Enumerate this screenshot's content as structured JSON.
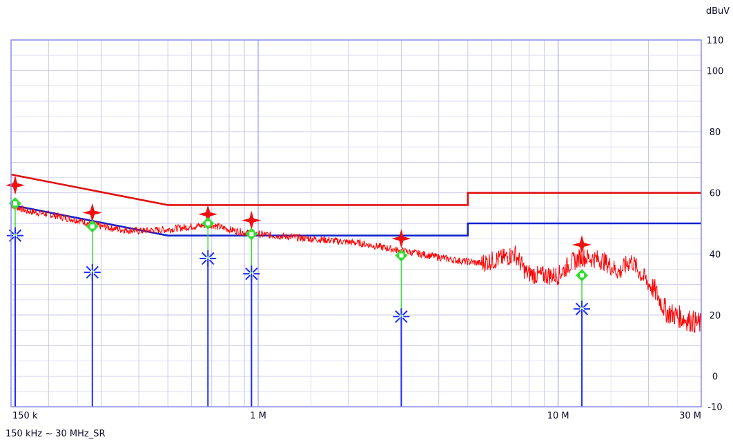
{
  "chart_data": {
    "type": "line",
    "x_scale": "log",
    "x_range_hz": [
      150000,
      30000000
    ],
    "y_range": [
      -10,
      110
    ],
    "y_unit_label": "dBuV",
    "y_ticks": [
      {
        "value": 110,
        "label": "110"
      },
      {
        "value": 100,
        "label": "100"
      },
      {
        "value": 80,
        "label": "80"
      },
      {
        "value": 60,
        "label": "60"
      },
      {
        "value": 40,
        "label": "40"
      },
      {
        "value": 20,
        "label": "20"
      },
      {
        "value": 0,
        "label": "0"
      },
      {
        "value": -10,
        "label": "-10"
      }
    ],
    "x_ticks": [
      {
        "value": 150000,
        "label": "150 k",
        "anchor": "start"
      },
      {
        "value": 1000000,
        "label": "1 M",
        "anchor": "middle"
      },
      {
        "value": 10000000,
        "label": "10 M",
        "anchor": "middle"
      },
      {
        "value": 30000000,
        "label": "30 M",
        "anchor": "end"
      }
    ],
    "range_label": "150 kHz ~ 30 MHz_SR",
    "grid": true,
    "colors": {
      "frame": "#8a8af0",
      "grid": "#c8c8e8",
      "minor_grid": "#e0e0f0",
      "trace": "#ff0000",
      "qp_limit": "#e01010",
      "avg_limit": "#1020d0",
      "qp_marker": "#ee1111",
      "avg_marker": "#1a2dff",
      "connector": "#33dd33"
    },
    "limit_lines": [
      {
        "color_key": "qp_limit",
        "points": [
          [
            150000,
            66
          ],
          [
            500000,
            56
          ],
          [
            5000000,
            56
          ],
          [
            5000000,
            60
          ],
          [
            30000000,
            60
          ]
        ]
      },
      {
        "color_key": "avg_limit",
        "points": [
          [
            150000,
            56
          ],
          [
            500000,
            46
          ],
          [
            5000000,
            46
          ],
          [
            5000000,
            50
          ],
          [
            30000000,
            50
          ]
        ]
      }
    ],
    "trace": [
      [
        150000,
        56
      ],
      [
        170000,
        54
      ],
      [
        200000,
        53
      ],
      [
        250000,
        51
      ],
      [
        300000,
        49
      ],
      [
        350000,
        48
      ],
      [
        400000,
        47.5
      ],
      [
        500000,
        48
      ],
      [
        600000,
        49
      ],
      [
        700000,
        49.5
      ],
      [
        800000,
        48
      ],
      [
        900000,
        47
      ],
      [
        1000000,
        46.5
      ],
      [
        1300000,
        45.5
      ],
      [
        1700000,
        44.5
      ],
      [
        2200000,
        43.5
      ],
      [
        3000000,
        41
      ],
      [
        3500000,
        40
      ],
      [
        4500000,
        38
      ],
      [
        5500000,
        37
      ],
      [
        6500000,
        38.5
      ],
      [
        7200000,
        40
      ],
      [
        7800000,
        34
      ],
      [
        8500000,
        33
      ],
      [
        10000000,
        33
      ],
      [
        11000000,
        37
      ],
      [
        12000000,
        39
      ],
      [
        14000000,
        38
      ],
      [
        16000000,
        34
      ],
      [
        17500000,
        38
      ],
      [
        19000000,
        33
      ],
      [
        21000000,
        28
      ],
      [
        23000000,
        21
      ],
      [
        26000000,
        19
      ],
      [
        30000000,
        17
      ]
    ],
    "markers": [
      {
        "freq": 150000,
        "qp_peak": 62.5,
        "qp": 56.5,
        "avg": 46
      },
      {
        "freq": 280000,
        "qp_peak": 53.5,
        "qp": 49,
        "avg": 34
      },
      {
        "freq": 680000,
        "qp_peak": 53,
        "qp": 50,
        "avg": 38.5
      },
      {
        "freq": 950000,
        "qp_peak": 51,
        "qp": 46.5,
        "avg": 33.5
      },
      {
        "freq": 3000000,
        "qp_peak": 45,
        "qp": 39.5,
        "avg": 19.5
      },
      {
        "freq": 12000000,
        "qp_peak": 43,
        "qp": 33,
        "avg": 22
      }
    ]
  }
}
